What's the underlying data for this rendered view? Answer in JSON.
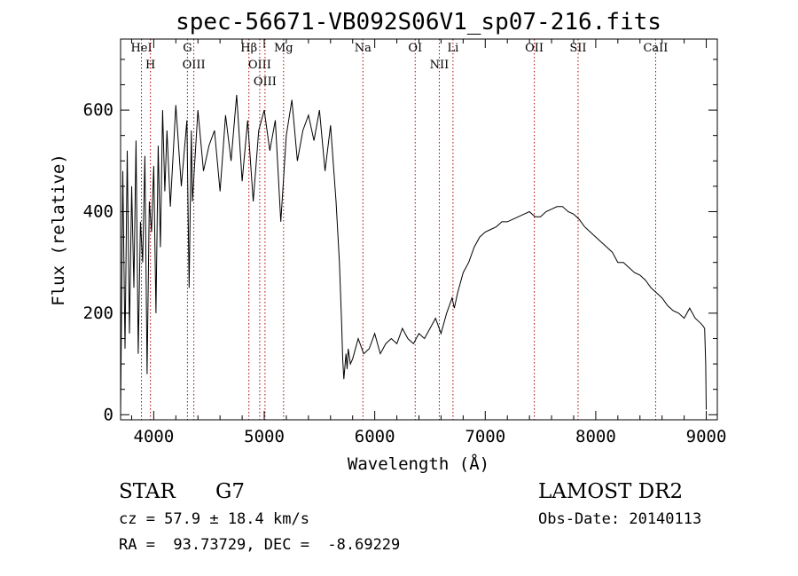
{
  "chart_data": {
    "type": "line",
    "title": "spec-56671-VB092S06V1_sp07-216.fits",
    "xlabel": "Wavelength (Å)",
    "ylabel": "Flux (relative)",
    "xlim": [
      3700,
      9100
    ],
    "ylim": [
      -10,
      740
    ],
    "x_ticks": [
      4000,
      5000,
      6000,
      7000,
      8000,
      9000
    ],
    "y_ticks": [
      0,
      200,
      400,
      600
    ],
    "grid": false,
    "lines": [
      {
        "name": "HeI",
        "x": 3889
      },
      {
        "name": "H",
        "x": 3970
      },
      {
        "name": "G",
        "x": 4305
      },
      {
        "name": "OIII",
        "x": 4363
      },
      {
        "name": "Hβ",
        "x": 4861
      },
      {
        "name": "OIII",
        "x": 4959
      },
      {
        "name": "OIII",
        "x": 5007
      },
      {
        "name": "Mg",
        "x": 5175
      },
      {
        "name": "Na",
        "x": 5893
      },
      {
        "name": "OI",
        "x": 6366
      },
      {
        "name": "NII",
        "x": 6584
      },
      {
        "name": "Li",
        "x": 6708
      },
      {
        "name": "OII",
        "x": 7444
      },
      {
        "name": "SII",
        "x": 7840
      },
      {
        "name": "CaII",
        "x": 8542
      }
    ],
    "series": [
      {
        "x": [
          3700,
          3720,
          3740,
          3760,
          3780,
          3800,
          3820,
          3840,
          3860,
          3880,
          3900,
          3920,
          3940,
          3960,
          3980,
          4000,
          4020,
          4040,
          4060,
          4080,
          4100,
          4120,
          4150,
          4200,
          4250,
          4300,
          4320,
          4340,
          4350,
          4400,
          4450,
          4500,
          4550,
          4600,
          4650,
          4700,
          4750,
          4800,
          4850,
          4900,
          4950,
          5000,
          5050,
          5100,
          5150,
          5200,
          5250,
          5300,
          5350,
          5400,
          5450,
          5500,
          5550,
          5600,
          5650,
          5680,
          5700,
          5710,
          5720,
          5730,
          5740,
          5750,
          5760,
          5780,
          5800,
          5850,
          5900,
          5950,
          6000,
          6050,
          6100,
          6150,
          6200,
          6250,
          6300,
          6350,
          6400,
          6450,
          6500,
          6550,
          6600,
          6650,
          6700,
          6720,
          6750,
          6800,
          6850,
          6900,
          6950,
          7000,
          7050,
          7100,
          7150,
          7200,
          7250,
          7300,
          7350,
          7400,
          7450,
          7500,
          7550,
          7600,
          7650,
          7700,
          7750,
          7800,
          7850,
          7900,
          7950,
          8000,
          8050,
          8100,
          8150,
          8200,
          8250,
          8300,
          8350,
          8400,
          8450,
          8500,
          8550,
          8600,
          8650,
          8700,
          8750,
          8800,
          8850,
          8900,
          8950,
          8970,
          8985,
          8995,
          9000
        ],
        "y": [
          0,
          480,
          130,
          520,
          160,
          450,
          250,
          540,
          120,
          380,
          300,
          510,
          80,
          420,
          360,
          490,
          200,
          530,
          330,
          600,
          440,
          560,
          410,
          610,
          450,
          580,
          250,
          560,
          420,
          600,
          480,
          530,
          560,
          440,
          590,
          500,
          630,
          460,
          580,
          420,
          560,
          600,
          520,
          580,
          380,
          550,
          620,
          500,
          560,
          590,
          540,
          600,
          480,
          570,
          420,
          300,
          180,
          110,
          70,
          95,
          120,
          90,
          130,
          100,
          110,
          150,
          120,
          130,
          160,
          120,
          140,
          150,
          140,
          170,
          150,
          140,
          160,
          150,
          170,
          190,
          160,
          200,
          230,
          210,
          240,
          280,
          300,
          330,
          350,
          360,
          365,
          370,
          380,
          380,
          385,
          390,
          395,
          400,
          390,
          390,
          400,
          405,
          410,
          410,
          400,
          395,
          385,
          370,
          360,
          350,
          340,
          330,
          320,
          300,
          300,
          290,
          280,
          275,
          265,
          250,
          240,
          230,
          215,
          205,
          200,
          190,
          210,
          190,
          180,
          175,
          170,
          100,
          10
        ]
      }
    ]
  },
  "info": {
    "object_class": "STAR",
    "subclass": "G7",
    "survey": "LAMOST DR2",
    "cz": "cz = 57.9 ± 18.4 km/s",
    "obs_date": "Obs-Date: 20140113",
    "coords": "RA =  93.73729, DEC =  -8.69229"
  }
}
